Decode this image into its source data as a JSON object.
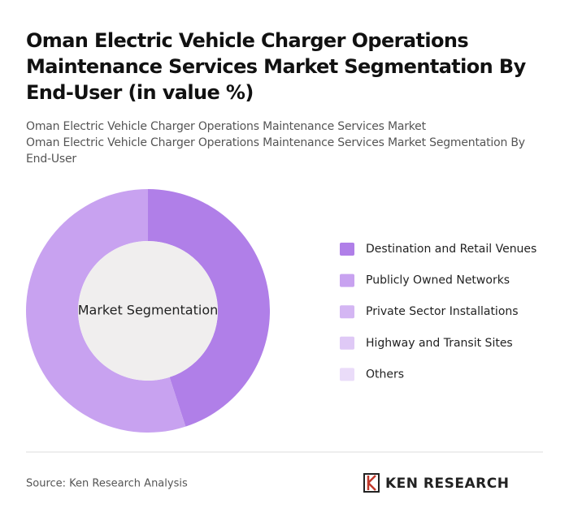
{
  "chart_data": {
    "type": "donut",
    "title": "Oman Electric Vehicle Charger Operations Maintenance Services Market Segmentation By End-User (in value %)",
    "subtitles": [
      "Oman Electric Vehicle Charger Operations Maintenance Services Market",
      "Oman Electric Vehicle Charger Operations Maintenance Services Market Segmentation By End-User"
    ],
    "center_label": "Market Segmentation",
    "categories": [
      "Destination and Retail Venues",
      "Publicly Owned Networks",
      "Private Sector Installations",
      "Highway and Transit Sites",
      "Others"
    ],
    "values": [
      45,
      55,
      0,
      0,
      0
    ],
    "colors": [
      "#b07fe8",
      "#c8a2f0",
      "#d4b6f3",
      "#dfc9f6",
      "#eadcf9"
    ],
    "legend": "right",
    "source": "Source: Ken Research Analysis",
    "logo": "KEN RESEARCH"
  }
}
